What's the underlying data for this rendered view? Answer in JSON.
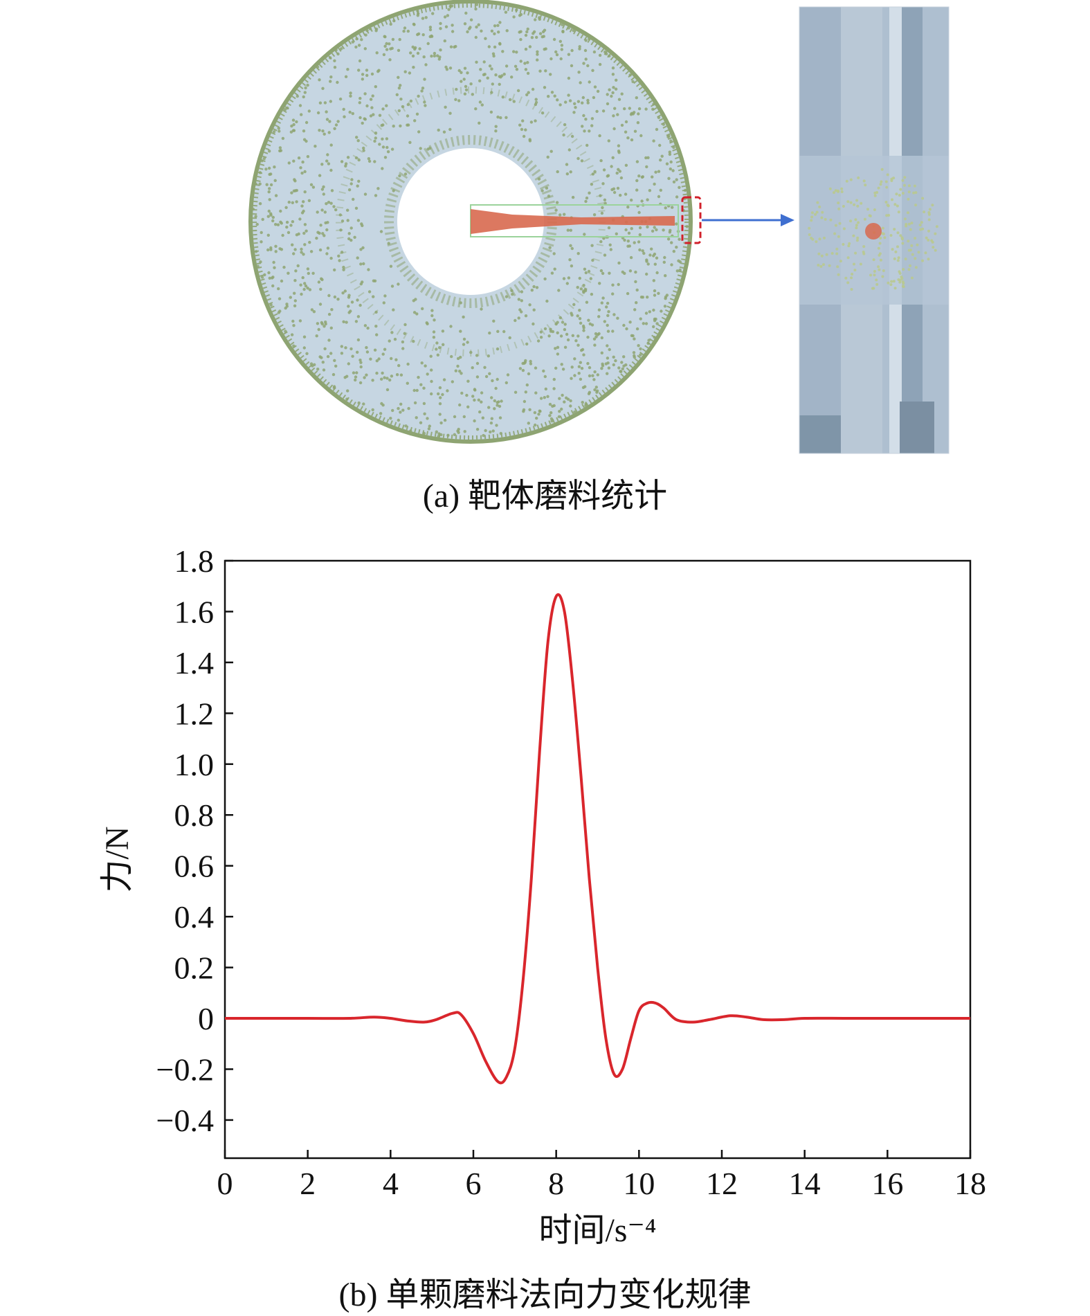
{
  "captions": {
    "a": "(a) 靶体磨料统计",
    "b": "(b) 单颗磨料法向力变化规律"
  },
  "colors": {
    "line": "#d9262c",
    "disk_fill": "#c6d6e2",
    "particle": "#8ea472",
    "core_particle": "#d8694f",
    "highlight_box": "#d1202a",
    "arrow": "#3f6fd0",
    "panel_fill": "#a9bdcf"
  },
  "chart_data": {
    "type": "line",
    "xlabel": "时间/s⁻⁴",
    "ylabel": "力/N",
    "xlim": [
      0,
      18
    ],
    "ylim": [
      -0.55,
      1.8
    ],
    "xticks": [
      "0",
      "2",
      "4",
      "6",
      "8",
      "10",
      "12",
      "14",
      "16",
      "18"
    ],
    "yticks": [
      "1.8",
      "1.6",
      "1.4",
      "1.2",
      "1.0",
      "0.8",
      "0.6",
      "0.4",
      "0.2",
      "0",
      "−0.2",
      "−0.4"
    ],
    "grid": false,
    "series": [
      {
        "x": [
          0,
          1,
          2,
          3,
          3.6,
          4,
          4.4,
          4.8,
          5.1,
          5.5,
          5.7,
          6.0,
          6.3,
          6.6,
          6.8,
          7.0,
          7.2,
          7.4,
          7.6,
          7.8,
          8.0,
          8.2,
          8.4,
          8.6,
          8.8,
          9.0,
          9.2,
          9.4,
          9.6,
          9.8,
          10.0,
          10.2,
          10.4,
          10.6,
          10.9,
          11.3,
          11.7,
          12.2,
          12.6,
          13.0,
          13.5,
          14,
          15,
          16,
          17,
          18
        ],
        "y": [
          0,
          0,
          0,
          0,
          0.005,
          0.0,
          -0.01,
          -0.015,
          -0.005,
          0.02,
          0.015,
          -0.06,
          -0.17,
          -0.25,
          -0.23,
          -0.12,
          0.15,
          0.55,
          1.05,
          1.48,
          1.66,
          1.6,
          1.32,
          0.95,
          0.55,
          0.2,
          -0.08,
          -0.22,
          -0.2,
          -0.08,
          0.03,
          0.06,
          0.06,
          0.04,
          -0.005,
          -0.015,
          -0.005,
          0.01,
          0.005,
          -0.005,
          -0.005,
          0,
          0,
          0,
          0,
          0
        ]
      }
    ]
  }
}
